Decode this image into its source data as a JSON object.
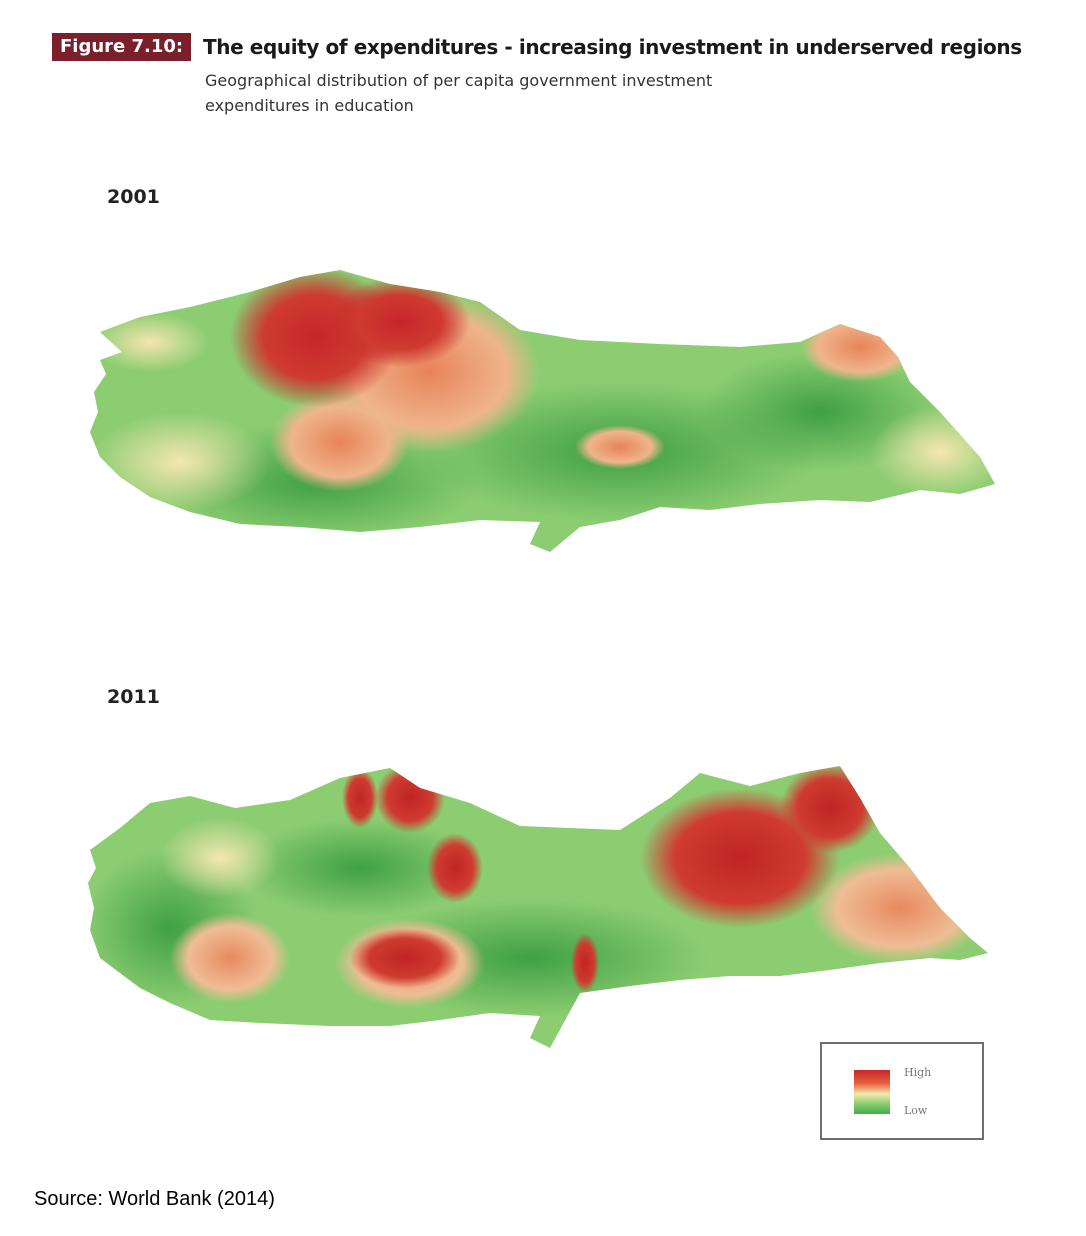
{
  "figure": {
    "label": "Figure 7.10:",
    "title": "The equity of expenditures - increasing investment in underserved regions",
    "subtitle": "Geographical distribution of per capita government investment expenditures in education"
  },
  "maps": [
    {
      "year": "2001"
    },
    {
      "year": "2011"
    }
  ],
  "legend": {
    "high_label": "High",
    "low_label": "Low"
  },
  "source": "Source: World Bank (2014)",
  "colors": {
    "high": "#c6262a",
    "mid_high": "#e5603d",
    "mid": "#f3e8ad",
    "low_light": "#8fd074",
    "low": "#42ad48"
  }
}
